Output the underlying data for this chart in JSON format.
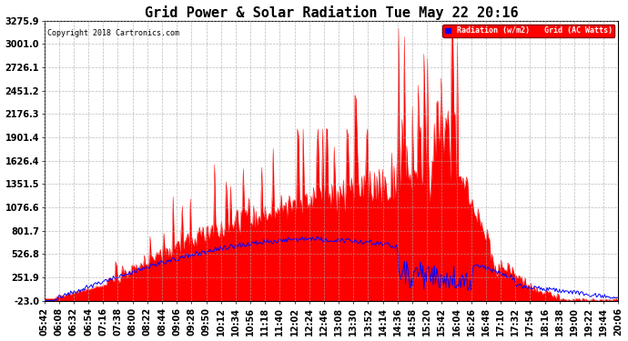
{
  "title": "Grid Power & Solar Radiation Tue May 22 20:16",
  "copyright": "Copyright 2018 Cartronics.com",
  "legend_labels": [
    "Radiation (w/m2)",
    "Grid (AC Watts)"
  ],
  "legend_colors": [
    "blue",
    "red"
  ],
  "yticks": [
    3275.9,
    3001.0,
    2726.1,
    2451.2,
    2176.3,
    1901.4,
    1626.4,
    1351.5,
    1076.6,
    801.7,
    526.8,
    251.9,
    -23.0
  ],
  "ymin": -23.0,
  "ymax": 3275.9,
  "bg_color": "#ffffff",
  "plot_bg_color": "#ffffff",
  "grid_color": "#aaaaaa",
  "title_fontsize": 11,
  "tick_fontsize": 7,
  "xtick_labels": [
    "05:42",
    "06:08",
    "06:32",
    "06:54",
    "07:16",
    "07:38",
    "08:00",
    "08:22",
    "08:44",
    "09:06",
    "09:28",
    "09:50",
    "10:12",
    "10:34",
    "10:56",
    "11:18",
    "11:40",
    "12:02",
    "12:24",
    "12:46",
    "13:08",
    "13:30",
    "13:52",
    "14:14",
    "14:36",
    "14:58",
    "15:20",
    "15:42",
    "16:04",
    "16:26",
    "16:48",
    "17:10",
    "17:32",
    "17:54",
    "18:16",
    "18:38",
    "19:00",
    "19:22",
    "19:44",
    "20:06"
  ]
}
